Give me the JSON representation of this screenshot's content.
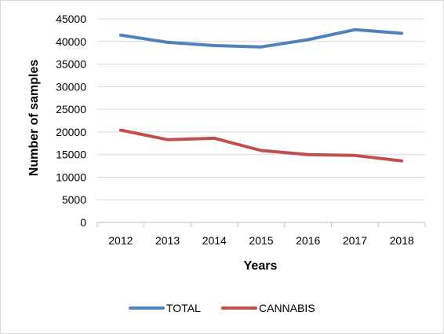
{
  "chart_data": {
    "type": "line",
    "title": "",
    "xlabel": "Years",
    "ylabel": "Number of samples",
    "categories": [
      "2012",
      "2013",
      "2014",
      "2015",
      "2016",
      "2017",
      "2018"
    ],
    "ylim": [
      0,
      45000
    ],
    "yticks": [
      "0",
      "5000",
      "10000",
      "15000",
      "20000",
      "25000",
      "30000",
      "35000",
      "40000",
      "45000"
    ],
    "grid": true,
    "legend_position": "bottom",
    "series": [
      {
        "name": "TOTAL",
        "color": "#4f81bd",
        "values": [
          41400,
          39800,
          39100,
          38800,
          40400,
          42600,
          41800
        ]
      },
      {
        "name": "CANNABIS",
        "color": "#c0504d",
        "values": [
          20400,
          18300,
          18600,
          15900,
          15000,
          14800,
          13600
        ]
      }
    ]
  }
}
